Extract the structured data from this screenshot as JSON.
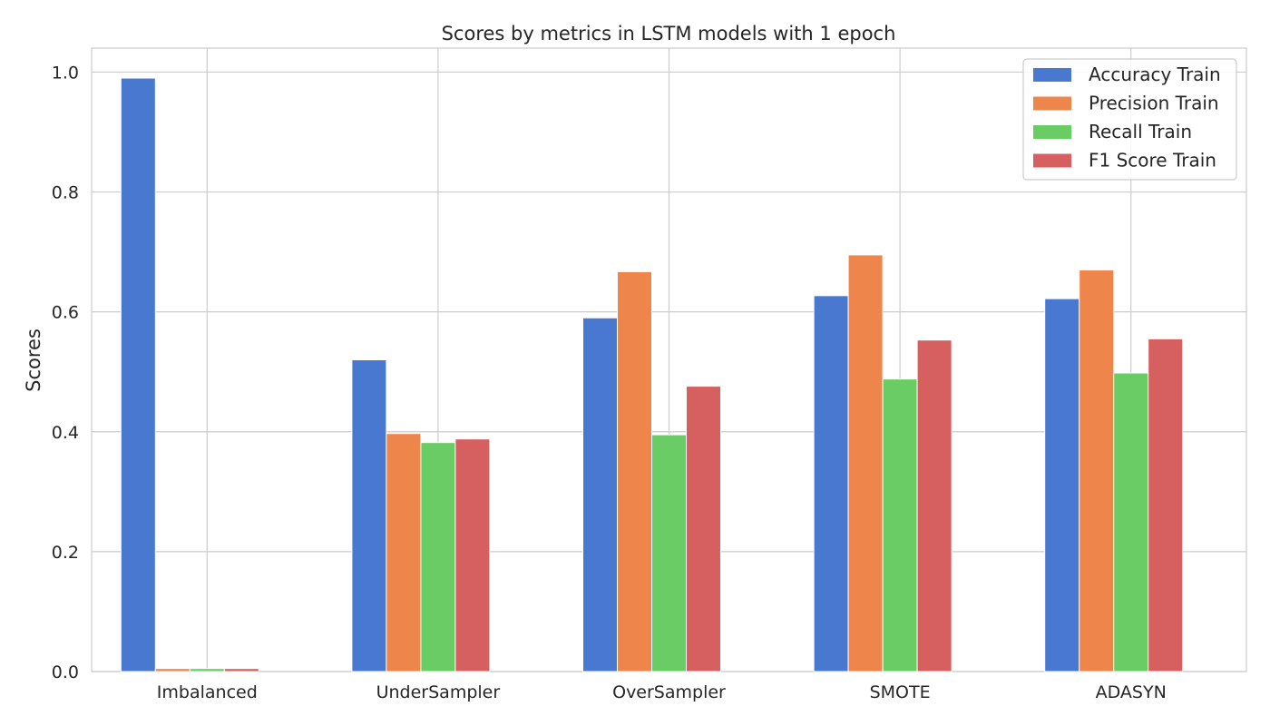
{
  "chart_data": {
    "type": "bar",
    "title": "Scores by metrics in LSTM models with 1 epoch",
    "xlabel": "",
    "ylabel": "Scores",
    "ylim": [
      0,
      1.04
    ],
    "yticks": [
      "0.0",
      "0.2",
      "0.4",
      "0.6",
      "0.8",
      "1.0"
    ],
    "grid": true,
    "legend_position": "top-right",
    "categories": [
      "Imbalanced",
      "UnderSampler",
      "OverSampler",
      "SMOTE",
      "ADASYN"
    ],
    "series": [
      {
        "name": "Accuracy Train",
        "color": "#4878d0",
        "values": [
          0.99,
          0.52,
          0.59,
          0.627,
          0.622
        ]
      },
      {
        "name": "Precision Train",
        "color": "#ee854a",
        "values": [
          0.005,
          0.397,
          0.667,
          0.695,
          0.67
        ]
      },
      {
        "name": "Recall Train",
        "color": "#6acc64",
        "values": [
          0.005,
          0.382,
          0.395,
          0.488,
          0.498
        ]
      },
      {
        "name": "F1 Score Train",
        "color": "#d65f5f",
        "values": [
          0.005,
          0.388,
          0.476,
          0.553,
          0.555
        ]
      }
    ]
  }
}
